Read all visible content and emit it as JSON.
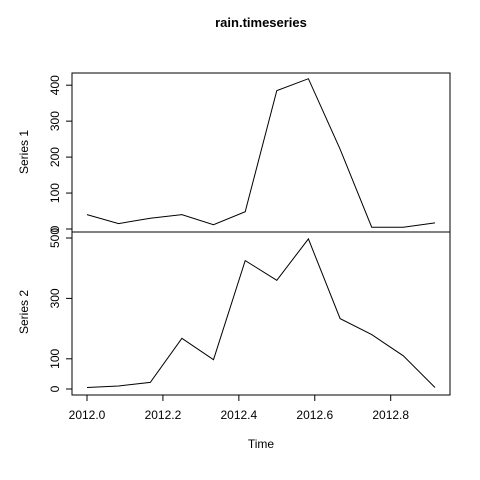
{
  "chart_data": {
    "type": "line",
    "title": "rain.timeseries",
    "xlabel": "Time",
    "xlim": [
      2012.0,
      2012.9167
    ],
    "x_ticks": [
      "2012.0",
      "2012.2",
      "2012.4",
      "2012.6",
      "2012.8"
    ],
    "x": [
      2012.0,
      2012.0833,
      2012.1667,
      2012.25,
      2012.3333,
      2012.4167,
      2012.5,
      2012.5833,
      2012.6667,
      2012.75,
      2012.8333,
      2012.9167
    ],
    "panels": [
      {
        "ylabel": "Series 1",
        "ylim": [
          0,
          420
        ],
        "y_ticks": [
          "0",
          "100",
          "200",
          "300",
          "400"
        ],
        "values": [
          40,
          15,
          30,
          40,
          12,
          48,
          385,
          418,
          222,
          5,
          5,
          17
        ]
      },
      {
        "ylabel": "Series 2",
        "ylim": [
          0,
          500
        ],
        "y_ticks": [
          "0",
          "100",
          "300",
          "500"
        ],
        "values": [
          5,
          10,
          22,
          168,
          97,
          425,
          360,
          497,
          233,
          180,
          110,
          5
        ]
      }
    ]
  }
}
